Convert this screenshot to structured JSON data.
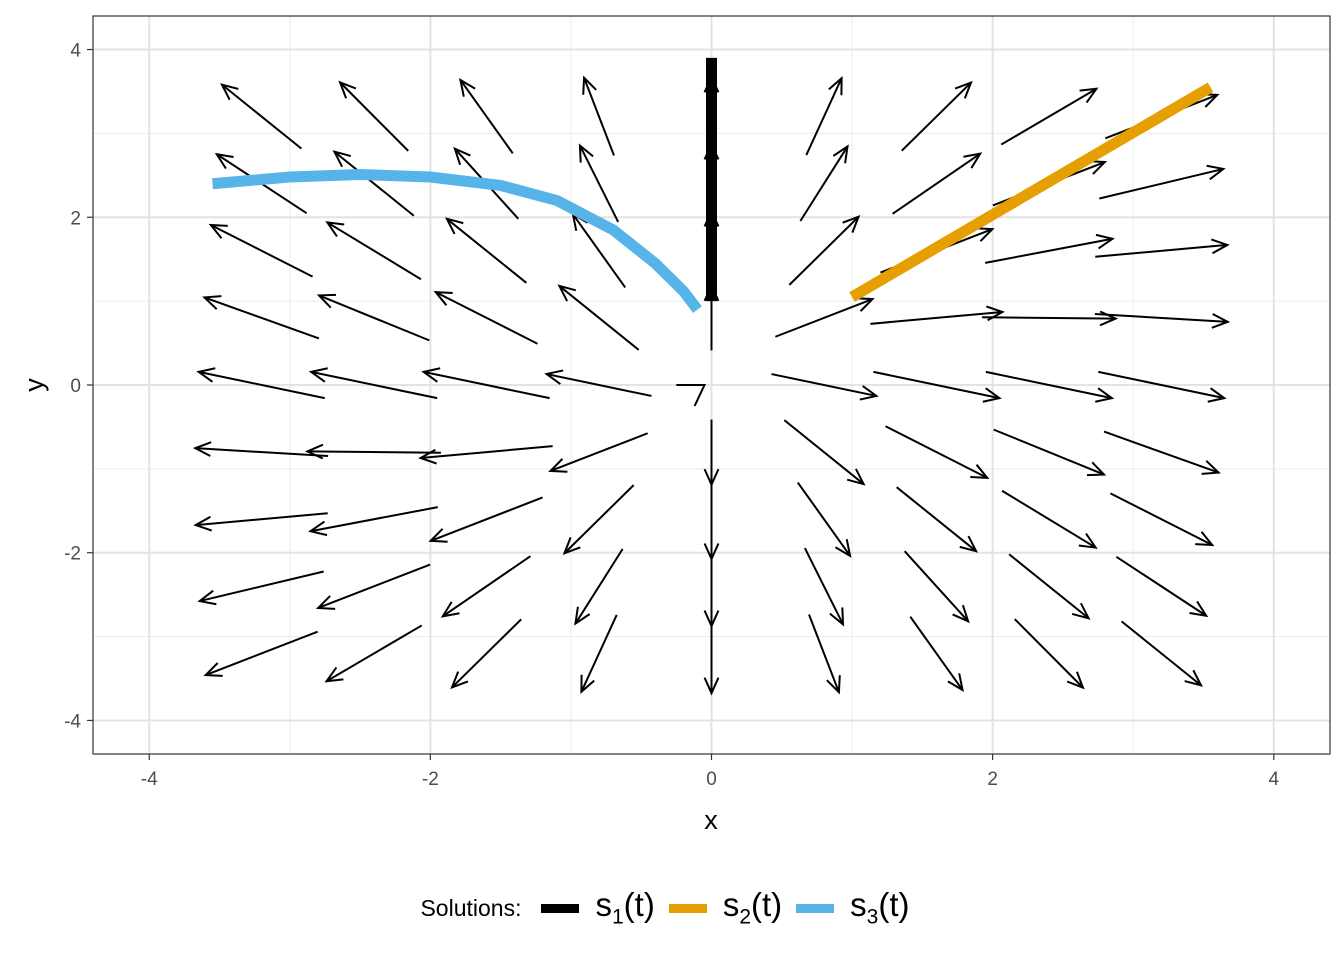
{
  "chart_data": {
    "type": "vector-field",
    "xlabel": "x",
    "ylabel": "y",
    "xlim": [
      -4.4,
      4.4
    ],
    "ylim": [
      -4.4,
      4.4
    ],
    "x_ticks": [
      -4,
      -2,
      0,
      2,
      4
    ],
    "y_ticks": [
      -4,
      -2,
      0,
      2,
      4
    ],
    "x_tick_labels": [
      "-4",
      "-2",
      "0",
      "2",
      "4"
    ],
    "y_tick_labels": [
      "-4",
      "-2",
      "0",
      "2",
      "4"
    ],
    "grid": true,
    "legend_position": "bottom",
    "legend": {
      "title": "Solutions:",
      "entries": [
        {
          "base": "s",
          "sub": "1",
          "suffix": "(t)",
          "color": "#000000"
        },
        {
          "base": "s",
          "sub": "2",
          "suffix": "(t)",
          "color": "#E69F00"
        },
        {
          "base": "s",
          "sub": "3",
          "suffix": "(t)",
          "color": "#56B4E9"
        }
      ]
    },
    "vector_field": {
      "x_points": [
        -3.2,
        -2.4,
        -1.6,
        -0.8,
        0,
        0.8,
        1.6,
        2.4,
        3.2
      ],
      "y_points": [
        3.2,
        2.4,
        1.6,
        0.8,
        0,
        -0.8,
        -1.6,
        -2.4,
        -3.2
      ],
      "arrow_length": 0.95
    },
    "series": [
      {
        "name": "s1(t)",
        "color": "#000000",
        "points": [
          [
            0,
            1.0
          ],
          [
            0,
            3.9
          ]
        ]
      },
      {
        "name": "s2(t)",
        "color": "#E69F00",
        "points": [
          [
            1.0,
            1.05
          ],
          [
            3.55,
            3.55
          ]
        ]
      },
      {
        "name": "s3(t)",
        "color": "#56B4E9",
        "points": [
          [
            -3.55,
            2.4
          ],
          [
            -3.0,
            2.48
          ],
          [
            -2.5,
            2.51
          ],
          [
            -2.0,
            2.48
          ],
          [
            -1.5,
            2.38
          ],
          [
            -1.1,
            2.2
          ],
          [
            -0.7,
            1.85
          ],
          [
            -0.4,
            1.45
          ],
          [
            -0.2,
            1.12
          ],
          [
            -0.1,
            0.9
          ]
        ]
      }
    ]
  }
}
